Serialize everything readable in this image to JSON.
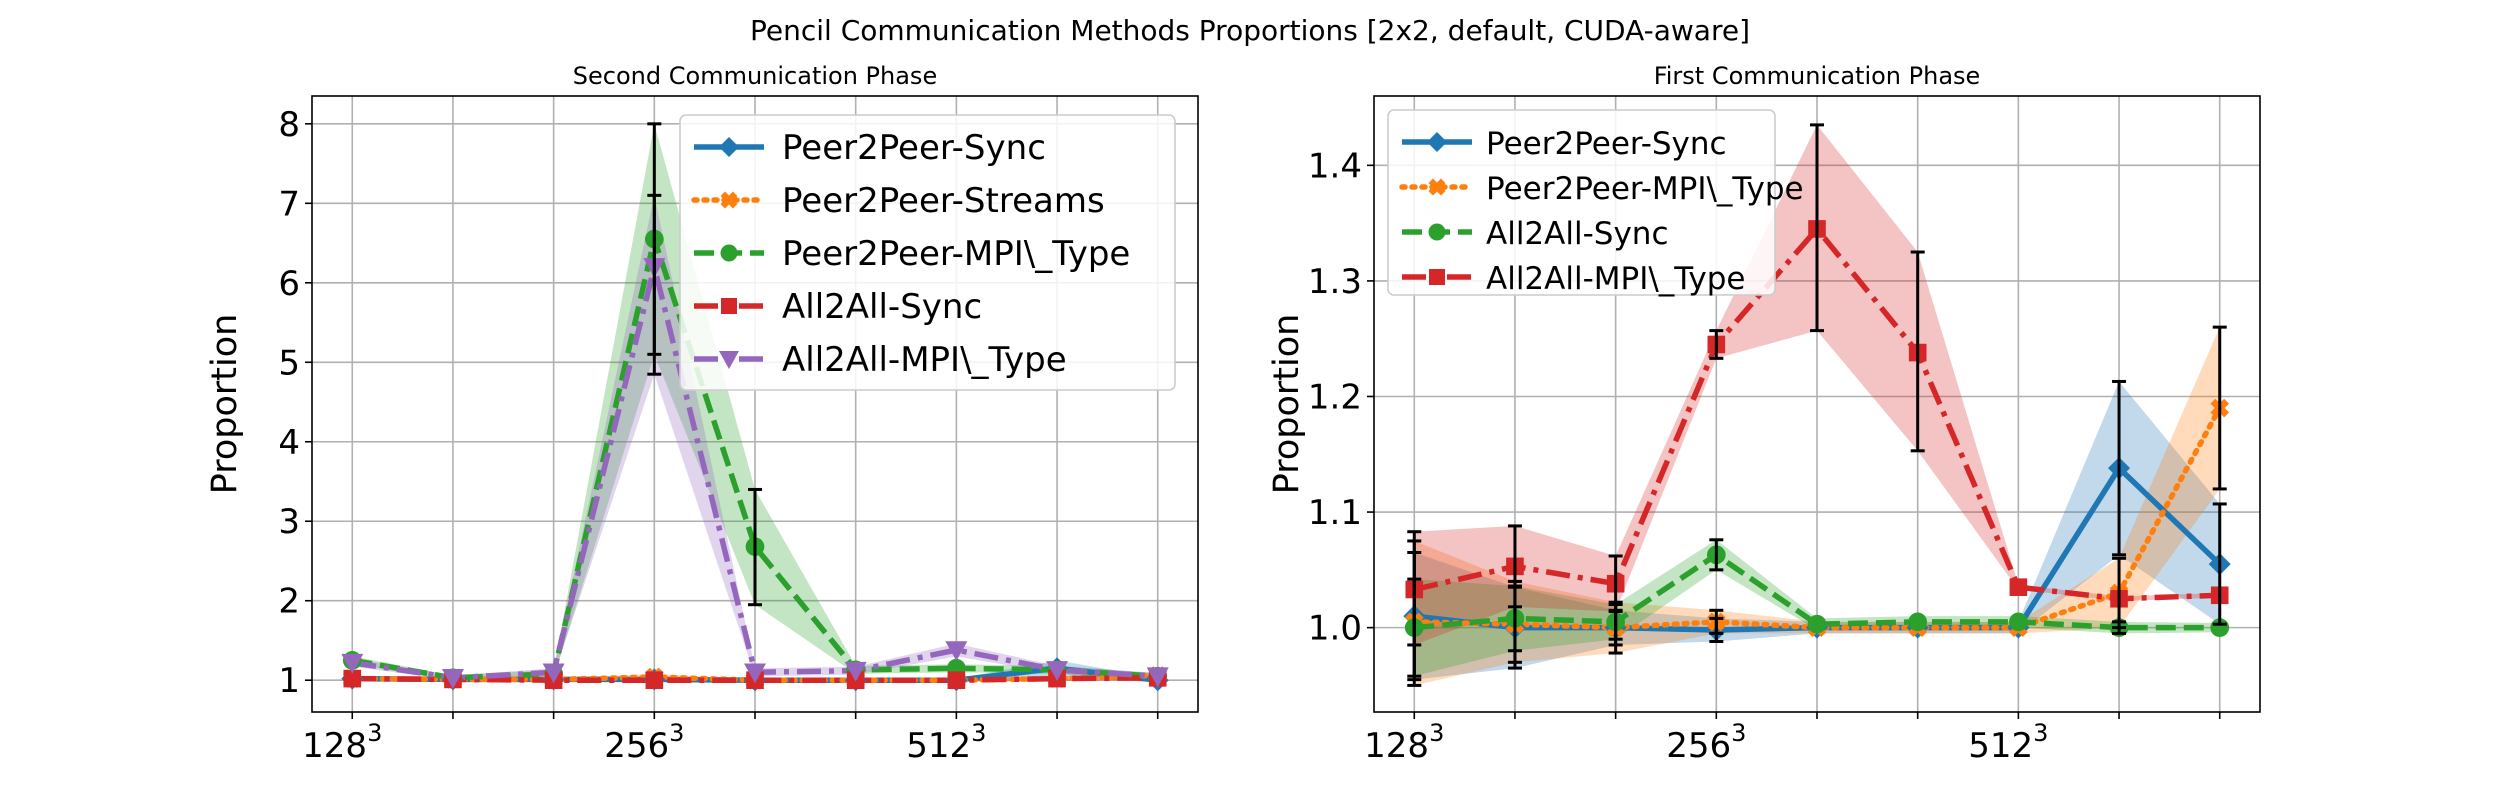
{
  "title": "Pencil Communication Methods Proportions [2$x$2, default, CUDA-aware]",
  "title_display": "Pencil Communication Methods Proportions [2x2, default, CUDA-aware]",
  "chart_data": [
    {
      "type": "line",
      "title": "Second Communication Phase",
      "xlabel": "",
      "ylabel": "Proportion",
      "x_positions": [
        0,
        1,
        2,
        3,
        4,
        5,
        6,
        7,
        8
      ],
      "xticks": [
        {
          "pos": 0,
          "base": "128",
          "exp": "3"
        },
        {
          "pos": 3,
          "base": "256",
          "exp": "3"
        },
        {
          "pos": 6,
          "base": "512",
          "exp": "3"
        }
      ],
      "xlim": [
        -0.4,
        8.4
      ],
      "ylim": [
        0.6,
        8.35
      ],
      "yticks": [
        1,
        2,
        3,
        4,
        5,
        6,
        7,
        8
      ],
      "grid": true,
      "legend_position": "upper right",
      "series": [
        {
          "name": "Peer2Peer-Sync",
          "color": "#1f77b4",
          "marker": "diamond",
          "dash": "solid",
          "values": [
            1.02,
            1.01,
            1.01,
            1.01,
            1.0,
            1.0,
            1.0,
            1.15,
            1.0
          ],
          "band": [
            [
              0.99,
              1.05
            ],
            [
              0.99,
              1.03
            ],
            [
              0.99,
              1.03
            ],
            [
              0.99,
              1.03
            ],
            [
              0.98,
              1.02
            ],
            [
              0.98,
              1.02
            ],
            [
              0.98,
              1.02
            ],
            [
              1.05,
              1.25
            ],
            [
              0.97,
              1.03
            ]
          ]
        },
        {
          "name": "Peer2Peer-Streams",
          "color": "#ff7f0e",
          "marker": "x",
          "dash": "dotted",
          "values": [
            1.02,
            1.01,
            1.01,
            1.04,
            1.0,
            1.0,
            1.0,
            1.02,
            1.06
          ],
          "band": [
            [
              0.99,
              1.05
            ],
            [
              0.99,
              1.03
            ],
            [
              0.99,
              1.03
            ],
            [
              1.0,
              1.08
            ],
            [
              0.98,
              1.02
            ],
            [
              0.98,
              1.02
            ],
            [
              0.98,
              1.02
            ],
            [
              0.99,
              1.05
            ],
            [
              1.02,
              1.1
            ]
          ]
        },
        {
          "name": "Peer2Peer-MPI\\_Type",
          "color": "#2ca02c",
          "marker": "circle",
          "dash": "dashed",
          "values": [
            1.25,
            1.03,
            1.08,
            6.55,
            2.68,
            1.13,
            1.15,
            1.13,
            1.05
          ],
          "band": [
            [
              1.2,
              1.3
            ],
            [
              1.0,
              1.06
            ],
            [
              1.03,
              1.13
            ],
            [
              5.1,
              8.0
            ],
            [
              1.95,
              3.4
            ],
            [
              1.08,
              1.18
            ],
            [
              1.1,
              1.2
            ],
            [
              1.08,
              1.18
            ],
            [
              1.01,
              1.09
            ]
          ],
          "errorbar": [
            null,
            null,
            null,
            [
              5.1,
              8.0
            ],
            [
              1.95,
              3.4
            ],
            null,
            null,
            null,
            null
          ]
        },
        {
          "name": "All2All-Sync",
          "color": "#d62728",
          "marker": "square",
          "dash": "dashdot",
          "values": [
            1.02,
            1.01,
            1.0,
            1.0,
            1.0,
            1.0,
            1.0,
            1.02,
            1.03
          ],
          "band": [
            [
              0.99,
              1.05
            ],
            [
              0.99,
              1.03
            ],
            [
              0.98,
              1.02
            ],
            [
              0.98,
              1.02
            ],
            [
              0.98,
              1.02
            ],
            [
              0.98,
              1.02
            ],
            [
              0.98,
              1.02
            ],
            [
              0.99,
              1.05
            ],
            [
              1.0,
              1.06
            ]
          ]
        },
        {
          "name": "All2All-MPI\\_Type",
          "color": "#9467bd",
          "marker": "triangle-down",
          "dash": "dashdot",
          "values": [
            1.22,
            1.03,
            1.1,
            6.2,
            1.1,
            1.12,
            1.38,
            1.13,
            1.05
          ],
          "band": [
            [
              1.17,
              1.27
            ],
            [
              1.0,
              1.06
            ],
            [
              1.05,
              1.15
            ],
            [
              4.85,
              7.1
            ],
            [
              1.05,
              1.15
            ],
            [
              1.07,
              1.17
            ],
            [
              1.3,
              1.46
            ],
            [
              1.08,
              1.18
            ],
            [
              1.01,
              1.09
            ]
          ],
          "errorbar": [
            null,
            null,
            null,
            [
              4.85,
              7.1
            ],
            null,
            null,
            null,
            null,
            null
          ]
        }
      ]
    },
    {
      "type": "line",
      "title": "First Communication Phase",
      "xlabel": "",
      "ylabel": "Proportion",
      "x_positions": [
        0,
        1,
        2,
        3,
        4,
        5,
        6,
        7,
        8
      ],
      "xticks": [
        {
          "pos": 0,
          "base": "128",
          "exp": "3"
        },
        {
          "pos": 3,
          "base": "256",
          "exp": "3"
        },
        {
          "pos": 6,
          "base": "512",
          "exp": "3"
        }
      ],
      "xlim": [
        -0.4,
        8.4
      ],
      "ylim": [
        0.927,
        1.46
      ],
      "yticks": [
        1.0,
        1.1,
        1.2,
        1.3,
        1.4
      ],
      "ytick_labels": [
        "1.0",
        "1.1",
        "1.2",
        "1.3",
        "1.4"
      ],
      "grid": true,
      "legend_position": "upper left",
      "series": [
        {
          "name": "Peer2Peer-Sync",
          "color": "#1f77b4",
          "marker": "diamond",
          "dash": "solid",
          "values": [
            1.01,
            1.0,
            1.0,
            0.998,
            1.0,
            1.0,
            1.0,
            1.138,
            1.055
          ],
          "band": [
            [
              0.955,
              1.065
            ],
            [
              0.965,
              1.035
            ],
            [
              0.985,
              1.015
            ],
            [
              0.988,
              1.008
            ],
            [
              0.995,
              1.005
            ],
            [
              0.995,
              1.005
            ],
            [
              0.995,
              1.005
            ],
            [
              1.063,
              1.213
            ],
            [
              1.003,
              1.107
            ]
          ],
          "errorbar": [
            [
              0.955,
              1.065
            ],
            [
              0.965,
              1.035
            ],
            [
              0.985,
              1.015
            ],
            [
              0.988,
              1.008
            ],
            null,
            null,
            null,
            [
              1.063,
              1.213
            ],
            [
              1.003,
              1.107
            ]
          ]
        },
        {
          "name": "Peer2Peer-MPI\\_Type",
          "color": "#ff7f0e",
          "marker": "x",
          "dash": "dotted",
          "values": [
            1.005,
            1.003,
            1.0,
            1.005,
            1.0,
            1.0,
            1.0,
            1.03,
            1.19
          ],
          "band": [
            [
              0.95,
              1.075
            ],
            [
              0.97,
              1.04
            ],
            [
              0.978,
              1.022
            ],
            [
              0.995,
              1.015
            ],
            [
              0.995,
              1.005
            ],
            [
              0.995,
              1.005
            ],
            [
              0.995,
              1.005
            ],
            [
              1.0,
              1.06
            ],
            [
              1.12,
              1.26
            ]
          ],
          "errorbar": [
            [
              0.95,
              1.075
            ],
            [
              0.97,
              1.04
            ],
            [
              0.978,
              1.022
            ],
            [
              0.995,
              1.015
            ],
            null,
            null,
            null,
            [
              1.0,
              1.06
            ],
            [
              1.12,
              1.26
            ]
          ]
        },
        {
          "name": "All2All-Sync",
          "color": "#2ca02c",
          "marker": "circle",
          "dash": "dashed",
          "values": [
            1.0,
            1.008,
            1.005,
            1.063,
            1.003,
            1.005,
            1.005,
            1.0,
            1.0
          ],
          "band": [
            [
              0.958,
              1.042
            ],
            [
              0.98,
              1.036
            ],
            [
              0.99,
              1.02
            ],
            [
              1.05,
              1.076
            ],
            [
              0.998,
              1.008
            ],
            [
              1.0,
              1.01
            ],
            [
              1.0,
              1.01
            ],
            [
              0.995,
              1.005
            ],
            [
              0.996,
              1.004
            ]
          ],
          "errorbar": [
            [
              0.958,
              1.042
            ],
            [
              0.98,
              1.036
            ],
            [
              0.99,
              1.02
            ],
            [
              1.05,
              1.076
            ],
            null,
            null,
            null,
            [
              0.995,
              1.005
            ],
            null
          ]
        },
        {
          "name": "All2All-MPI\\_Type",
          "color": "#d62728",
          "marker": "square",
          "dash": "dashdot",
          "values": [
            1.033,
            1.053,
            1.038,
            1.245,
            1.345,
            1.238,
            1.035,
            1.025,
            1.028
          ],
          "band": [
            [
              0.985,
              1.083
            ],
            [
              1.018,
              1.088
            ],
            [
              1.014,
              1.062
            ],
            [
              1.233,
              1.257
            ],
            [
              1.257,
              1.435
            ],
            [
              1.153,
              1.325
            ],
            [
              1.033,
              1.037
            ],
            [
              1.023,
              1.027
            ],
            [
              1.026,
              1.03
            ]
          ],
          "errorbar": [
            [
              0.985,
              1.083
            ],
            [
              1.018,
              1.088
            ],
            [
              1.014,
              1.062
            ],
            [
              1.233,
              1.257
            ],
            [
              1.257,
              1.435
            ],
            [
              1.153,
              1.325
            ],
            null,
            null,
            null
          ]
        }
      ]
    }
  ]
}
